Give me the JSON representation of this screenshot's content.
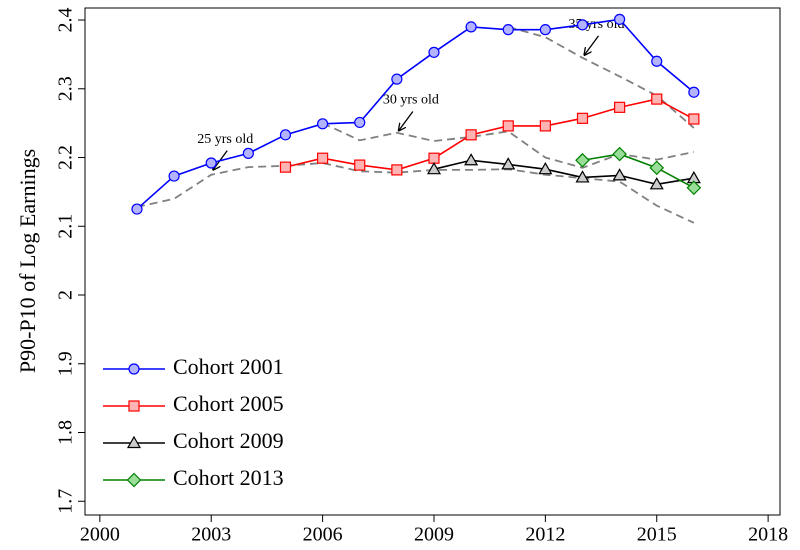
{
  "chart_data": {
    "type": "line",
    "y_label": "P90-P10 of Log Earnings",
    "xlim": [
      1999.6,
      2018.32
    ],
    "ylim": [
      1.68,
      2.4175
    ],
    "xticks": [
      2000,
      2003,
      2006,
      2009,
      2012,
      2015,
      2018
    ],
    "yticks": [
      1.7,
      1.8,
      1.9,
      2,
      2.1,
      2.2,
      2.3,
      2.4
    ],
    "legend": "lower-left",
    "series": [
      {
        "name": "Cohort 2001",
        "color": "#0000ff",
        "fill": "#b3b3ff",
        "marker": "circle",
        "x": [
          2001,
          2002,
          2003,
          2004,
          2005,
          2006,
          2007,
          2008,
          2009,
          2010,
          2011,
          2012,
          2013,
          2014,
          2015,
          2016
        ],
        "values": [
          2.125,
          2.173,
          2.192,
          2.206,
          2.233,
          2.249,
          2.251,
          2.314,
          2.353,
          2.39,
          2.386,
          2.386,
          2.393,
          2.401,
          2.34,
          2.295
        ]
      },
      {
        "name": "Cohort 2005",
        "color": "#ff0000",
        "fill": "#ffb3b3",
        "marker": "square",
        "x": [
          2005,
          2006,
          2007,
          2008,
          2009,
          2010,
          2011,
          2012,
          2013,
          2014,
          2015,
          2016
        ],
        "values": [
          2.186,
          2.199,
          2.189,
          2.182,
          2.199,
          2.233,
          2.246,
          2.246,
          2.257,
          2.273,
          2.285,
          2.256
        ]
      },
      {
        "name": "Cohort 2009",
        "color": "#000000",
        "fill": "#cccccc",
        "marker": "triangle",
        "x": [
          2009,
          2010,
          2011,
          2012,
          2013,
          2014,
          2015,
          2016
        ],
        "values": [
          2.183,
          2.196,
          2.19,
          2.183,
          2.171,
          2.174,
          2.161,
          2.17
        ]
      },
      {
        "name": "Cohort 2013",
        "color": "#008000",
        "fill": "#99dd99",
        "marker": "diamond",
        "x": [
          2013,
          2014,
          2015,
          2016
        ],
        "values": [
          2.196,
          2.205,
          2.185,
          2.156
        ]
      }
    ],
    "reference_lines": [
      {
        "color": "#808080",
        "x": [
          2001,
          2002,
          2003,
          2004,
          2005,
          2006,
          2007,
          2008,
          2009,
          2010,
          2011,
          2012,
          2013,
          2014,
          2015,
          2016
        ],
        "values": [
          2.128,
          2.14,
          2.175,
          2.186,
          2.188,
          2.192,
          2.18,
          2.178,
          2.182,
          2.182,
          2.183,
          2.175,
          2.17,
          2.165,
          2.13,
          2.105
        ]
      },
      {
        "color": "#808080",
        "x": [
          2006,
          2007,
          2008,
          2009,
          2010,
          2011,
          2012,
          2013,
          2014,
          2015,
          2016
        ],
        "values": [
          2.25,
          2.225,
          2.236,
          2.224,
          2.23,
          2.238,
          2.2,
          2.185,
          2.205,
          2.197,
          2.208
        ]
      },
      {
        "color": "#808080",
        "x": [
          2011,
          2012,
          2013,
          2014,
          2015,
          2016
        ],
        "values": [
          2.39,
          2.375,
          2.345,
          2.318,
          2.29,
          2.243
        ]
      }
    ],
    "annotations": [
      {
        "text": "25 yrs old",
        "x": 2003,
        "y": 2.178
      },
      {
        "text": "30 yrs old",
        "x": 2008,
        "y": 2.235
      },
      {
        "text": "35 yrs old",
        "x": 2013,
        "y": 2.345
      }
    ]
  }
}
